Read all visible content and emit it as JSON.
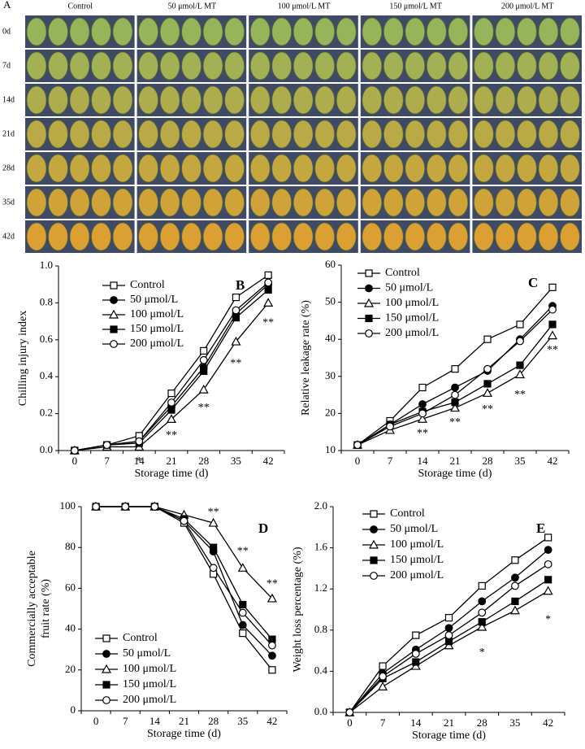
{
  "panel_a": {
    "label": "A",
    "columns": [
      "Control",
      "50 μmol/L MT",
      "100 μmol/L MT",
      "150 μmol/L MT",
      "200 μmol/L MT"
    ],
    "rows": [
      "0d",
      "7d",
      "14d",
      "21d",
      "28d",
      "35d",
      "42d"
    ]
  },
  "chart_data": [
    {
      "type": "line",
      "panel": "B",
      "xlabel": "Storage time (d)",
      "ylabel": [
        "Chilling injury index"
      ],
      "categories": [
        "0",
        "7",
        "14",
        "21",
        "28",
        "35",
        "42"
      ],
      "ylim": [
        0,
        1
      ],
      "yticks": [
        {
          "value": 0,
          "label": "0.0"
        },
        0.2,
        0.4,
        0.6,
        0.8,
        {
          "value": 1,
          "label": "1.0"
        }
      ],
      "legend": "upper left",
      "series": [
        {
          "name": "Control",
          "color": "#000",
          "marker": "square-open",
          "values": [
            0,
            0.03,
            0.08,
            0.31,
            0.54,
            0.83,
            0.95
          ]
        },
        {
          "name": "50 μmol/L",
          "color": "#000",
          "marker": "circle-filled",
          "values": [
            0,
            0.03,
            0.05,
            0.24,
            0.45,
            0.74,
            0.9
          ]
        },
        {
          "name": "100 μmol/L",
          "color": "#000",
          "marker": "triangle-open",
          "values": [
            0,
            0.02,
            0.02,
            0.17,
            0.33,
            0.59,
            0.8
          ]
        },
        {
          "name": "150 μmol/L",
          "color": "#000",
          "marker": "square-filled",
          "values": [
            0,
            0.03,
            0.04,
            0.22,
            0.43,
            0.72,
            0.87
          ]
        },
        {
          "name": "200 μmol/L",
          "color": "#000",
          "marker": "circle-open",
          "values": [
            0,
            0.03,
            0.05,
            0.26,
            0.49,
            0.76,
            0.91
          ]
        }
      ],
      "annotations": [
        {
          "text": "*",
          "x": "14",
          "y": -0.06
        },
        {
          "text": "**",
          "x": "21",
          "y": 0.08
        },
        {
          "text": "**",
          "x": "28",
          "y": 0.23
        },
        {
          "text": "**",
          "x": "35",
          "y": 0.47
        },
        {
          "text": "**",
          "x": "42",
          "y": 0.69
        }
      ]
    },
    {
      "type": "line",
      "panel": "C",
      "xlabel": "Storage time (d)",
      "ylabel": [
        "Relative leakage rate (%)"
      ],
      "categories": [
        "0",
        "7",
        "14",
        "21",
        "28",
        "35",
        "42"
      ],
      "ylim": [
        10,
        60
      ],
      "yticks": [
        10,
        20,
        30,
        40,
        50,
        60
      ],
      "legend": "upper left",
      "series": [
        {
          "name": "Control",
          "color": "#000",
          "marker": "square-open",
          "values": [
            11.5,
            18,
            27,
            32,
            40,
            44,
            54
          ]
        },
        {
          "name": "50 μmol/L",
          "color": "#000",
          "marker": "circle-filled",
          "values": [
            11.5,
            17,
            22.5,
            27,
            31.5,
            40,
            49
          ]
        },
        {
          "name": "100 μmol/L",
          "color": "#000",
          "marker": "triangle-open",
          "values": [
            11.5,
            15.5,
            18.5,
            21.5,
            25.5,
            30.5,
            41
          ]
        },
        {
          "name": "150 μmol/L",
          "color": "#000",
          "marker": "square-filled",
          "values": [
            11.5,
            17,
            20.5,
            23,
            28,
            33,
            44
          ]
        },
        {
          "name": "200 μmol/L",
          "color": "#000",
          "marker": "circle-open",
          "values": [
            11.5,
            16.5,
            20,
            25,
            32,
            39.5,
            48
          ]
        }
      ],
      "annotations": [
        {
          "text": "**",
          "x": "14",
          "y": 14.5
        },
        {
          "text": "**",
          "x": "21",
          "y": 17.5
        },
        {
          "text": "**",
          "x": "28",
          "y": 21
        },
        {
          "text": "**",
          "x": "35",
          "y": 25
        },
        {
          "text": "**",
          "x": "42",
          "y": 37
        }
      ]
    },
    {
      "type": "line",
      "panel": "D",
      "xlabel": "Storage time (d)",
      "ylabel": [
        "Commercially acceptable",
        "fruit rate (%)"
      ],
      "categories": [
        "0",
        "7",
        "14",
        "21",
        "28",
        "35",
        "42"
      ],
      "ylim": [
        0,
        100
      ],
      "yticks": [
        0,
        20,
        40,
        60,
        80,
        100
      ],
      "legend": "lower left",
      "series": [
        {
          "name": "Control",
          "color": "#000",
          "marker": "square-open",
          "values": [
            100,
            100,
            100,
            92,
            67,
            38,
            20
          ]
        },
        {
          "name": "50 μmol/L",
          "color": "#000",
          "marker": "circle-filled",
          "values": [
            100,
            100,
            100,
            93,
            78,
            42,
            27
          ]
        },
        {
          "name": "100 μmol/L",
          "color": "#000",
          "marker": "triangle-open",
          "values": [
            100,
            100,
            100,
            96,
            92,
            70,
            55
          ]
        },
        {
          "name": "150 μmol/L",
          "color": "#000",
          "marker": "square-filled",
          "values": [
            100,
            100,
            100,
            94,
            80,
            52,
            35
          ]
        },
        {
          "name": "200 μmol/L",
          "color": "#000",
          "marker": "circle-open",
          "values": [
            100,
            100,
            100,
            93,
            70,
            48,
            32
          ]
        }
      ],
      "annotations": [
        {
          "text": "**",
          "x": "28",
          "y": 97
        },
        {
          "text": "**",
          "x": "35",
          "y": 78
        },
        {
          "text": "**",
          "x": "42",
          "y": 62
        }
      ]
    },
    {
      "type": "line",
      "panel": "E",
      "xlabel": "Storage time (d)",
      "ylabel": [
        "Weight loss percentage (%)"
      ],
      "categories": [
        "0",
        "7",
        "14",
        "21",
        "28",
        "35",
        "42"
      ],
      "ylim": [
        0,
        2
      ],
      "yticks": [
        {
          "value": 0,
          "label": "0.0"
        },
        0.4,
        0.8,
        1.2,
        1.6,
        {
          "value": 2,
          "label": "2.0"
        }
      ],
      "legend": "upper left",
      "series": [
        {
          "name": "Control",
          "color": "#000",
          "marker": "square-open",
          "values": [
            0,
            0.45,
            0.75,
            0.92,
            1.23,
            1.48,
            1.7
          ]
        },
        {
          "name": "50 μmol/L",
          "color": "#000",
          "marker": "circle-filled",
          "values": [
            0,
            0.38,
            0.61,
            0.82,
            1.08,
            1.31,
            1.58
          ]
        },
        {
          "name": "100 μmol/L",
          "color": "#000",
          "marker": "triangle-open",
          "values": [
            0,
            0.25,
            0.45,
            0.65,
            0.83,
            0.99,
            1.18
          ]
        },
        {
          "name": "150 μmol/L",
          "color": "#000",
          "marker": "square-filled",
          "values": [
            0,
            0.33,
            0.49,
            0.69,
            0.88,
            1.08,
            1.29
          ]
        },
        {
          "name": "200 μmol/L",
          "color": "#000",
          "marker": "circle-open",
          "values": [
            0,
            0.35,
            0.57,
            0.75,
            0.97,
            1.23,
            1.44
          ]
        }
      ],
      "annotations": [
        {
          "text": "*",
          "x": "28",
          "y": 0.58
        },
        {
          "text": "*",
          "x": "42",
          "y": 0.9
        }
      ]
    }
  ]
}
